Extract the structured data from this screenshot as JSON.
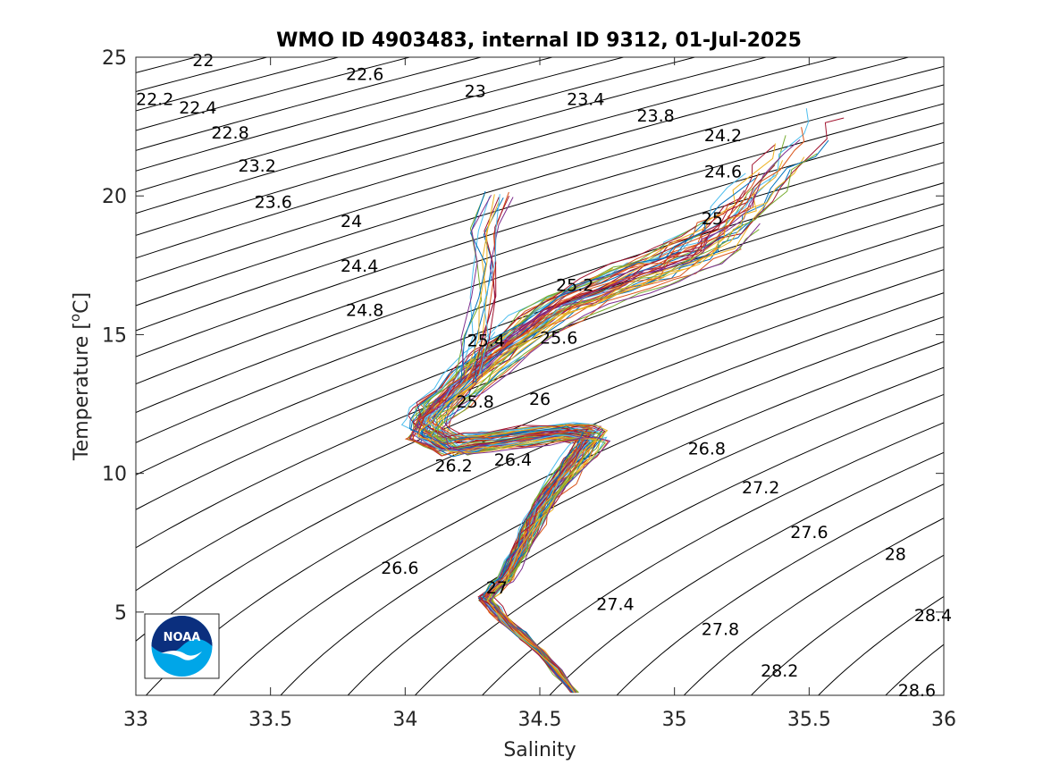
{
  "chart_data": {
    "type": "line",
    "title": "WMO ID 4903483, internal ID 9312, 01-Jul-2025",
    "xlabel": "Salinity",
    "ylabel_main": "Temperature [",
    "ylabel_sup": "o",
    "ylabel_end": "C]",
    "xlim": [
      33,
      36
    ],
    "ylim": [
      2,
      25
    ],
    "xticks": [
      "33",
      "33.5",
      "34",
      "34.5",
      "35",
      "35.5",
      "36"
    ],
    "xtick_values": [
      33,
      33.5,
      34,
      34.5,
      35,
      35.5,
      36
    ],
    "yticks": [
      "5",
      "10",
      "15",
      "20",
      "25"
    ],
    "ytick_values": [
      5,
      10,
      15,
      20,
      25
    ],
    "grid": false,
    "isopycnal_step": 0.2,
    "isopycnal_range": [
      21.8,
      29.0
    ],
    "isopycnal_labels": [
      {
        "text": "22",
        "s": 33.21,
        "t": 24.9
      },
      {
        "text": "22.2",
        "s": 33.0,
        "t": 23.5
      },
      {
        "text": "22.4",
        "s": 33.16,
        "t": 23.2
      },
      {
        "text": "22.6",
        "s": 33.78,
        "t": 24.4
      },
      {
        "text": "23",
        "s": 34.22,
        "t": 23.8
      },
      {
        "text": "23.4",
        "s": 34.6,
        "t": 23.5
      },
      {
        "text": "22.8",
        "s": 33.28,
        "t": 22.3
      },
      {
        "text": "23.8",
        "s": 34.86,
        "t": 22.9
      },
      {
        "text": "24.2",
        "s": 35.11,
        "t": 22.2
      },
      {
        "text": "23.2",
        "s": 33.38,
        "t": 21.1
      },
      {
        "text": "24.6",
        "s": 35.11,
        "t": 20.9
      },
      {
        "text": "23.6",
        "s": 33.44,
        "t": 19.8
      },
      {
        "text": "24",
        "s": 33.76,
        "t": 19.1
      },
      {
        "text": "25",
        "s": 35.1,
        "t": 19.2
      },
      {
        "text": "24.4",
        "s": 33.76,
        "t": 17.5
      },
      {
        "text": "25.2",
        "s": 34.56,
        "t": 16.8
      },
      {
        "text": "24.8",
        "s": 33.78,
        "t": 15.9
      },
      {
        "text": "25.4",
        "s": 34.23,
        "t": 14.8
      },
      {
        "text": "25.6",
        "s": 34.5,
        "t": 14.9
      },
      {
        "text": "25.8",
        "s": 34.19,
        "t": 12.6
      },
      {
        "text": "26",
        "s": 34.46,
        "t": 12.7
      },
      {
        "text": "26.8",
        "s": 35.05,
        "t": 10.9
      },
      {
        "text": "26.2",
        "s": 34.11,
        "t": 10.3
      },
      {
        "text": "26.4",
        "s": 34.33,
        "t": 10.5
      },
      {
        "text": "27.2",
        "s": 35.25,
        "t": 9.5
      },
      {
        "text": "27.6",
        "s": 35.43,
        "t": 7.9
      },
      {
        "text": "28",
        "s": 35.78,
        "t": 7.1
      },
      {
        "text": "26.6",
        "s": 33.91,
        "t": 6.6
      },
      {
        "text": "27",
        "s": 34.3,
        "t": 5.9
      },
      {
        "text": "27.4",
        "s": 34.71,
        "t": 5.3
      },
      {
        "text": "28.4",
        "s": 35.89,
        "t": 4.9
      },
      {
        "text": "27.8",
        "s": 35.1,
        "t": 4.4
      },
      {
        "text": "28.2",
        "s": 35.32,
        "t": 2.9
      },
      {
        "text": "28.6",
        "s": 35.83,
        "t": 2.2
      }
    ],
    "profile_count": 60,
    "profile_colors": [
      "#0072BD",
      "#D95319",
      "#EDB120",
      "#7E2F8E",
      "#77AC30",
      "#4DBEEE",
      "#A2142F"
    ],
    "profile_template": [
      [
        34.63,
        2.1
      ],
      [
        34.5,
        3.6
      ],
      [
        34.37,
        4.7
      ],
      [
        34.3,
        5.5
      ],
      [
        34.37,
        6.2
      ],
      [
        34.43,
        7.3
      ],
      [
        34.48,
        8.3
      ],
      [
        34.54,
        9.3
      ],
      [
        34.63,
        10.4
      ],
      [
        34.7,
        11.4
      ],
      [
        34.6,
        11.5
      ],
      [
        34.35,
        11.2
      ],
      [
        34.18,
        11.0
      ],
      [
        34.07,
        11.5
      ],
      [
        34.1,
        12.2
      ],
      [
        34.23,
        13.3
      ],
      [
        34.38,
        14.6
      ],
      [
        34.58,
        16.0
      ],
      [
        34.82,
        17.0
      ],
      [
        35.0,
        17.6
      ],
      [
        35.15,
        18.4
      ],
      [
        35.25,
        19.3
      ],
      [
        35.35,
        20.4
      ],
      [
        35.45,
        21.6
      ],
      [
        35.5,
        22.5
      ]
    ],
    "profile_branch": [
      [
        34.24,
        13.4
      ],
      [
        34.27,
        14.8
      ],
      [
        34.3,
        16.2
      ],
      [
        34.31,
        17.5
      ],
      [
        34.3,
        18.8
      ],
      [
        34.35,
        20.0
      ]
    ],
    "logo": {
      "text": "NOAA",
      "ring_color": "#0b2f7e",
      "sea_color": "#00a6e8"
    }
  }
}
